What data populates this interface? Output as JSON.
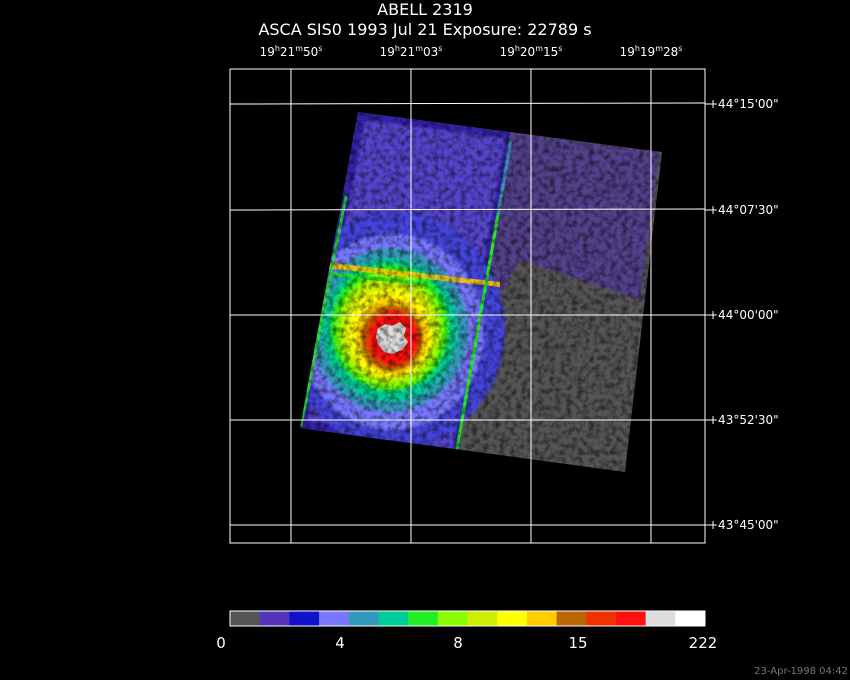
{
  "title": "ABELL 2319",
  "subtitle": "ASCA SIS0   1993 Jul 21    Exposure: 22789 s",
  "ra_labels": [
    {
      "h": "19",
      "m": "21",
      "s": "50"
    },
    {
      "h": "19",
      "m": "21",
      "s": "03"
    },
    {
      "h": "19",
      "m": "20",
      "s": "15"
    },
    {
      "h": "19",
      "m": "19",
      "s": "28"
    }
  ],
  "dec_labels": [
    "+44°15'00\"",
    "+44°07'30\"",
    "+44°00'00\"",
    "+43°52'30\"",
    "+43°45'00\""
  ],
  "colorbar": {
    "labels": [
      "0",
      "4",
      "8",
      "15",
      "222"
    ],
    "colors": [
      "#555555",
      "#5533bb",
      "#1111cc",
      "#7777ff",
      "#3399bb",
      "#00cc99",
      "#22ee22",
      "#88ff00",
      "#ccee00",
      "#ffff00",
      "#ffcc00",
      "#bb6600",
      "#ee3300",
      "#ff1111",
      "#dddddd",
      "#ffffff"
    ]
  },
  "timestamp": "23-Apr-1998 04:42"
}
